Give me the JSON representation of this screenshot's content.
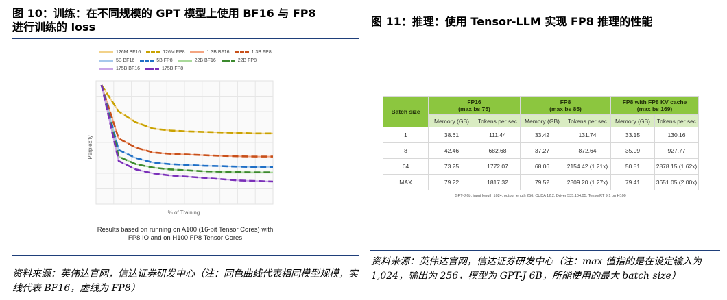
{
  "fig10": {
    "title_line1": "图 10：训练：在不同规模的 GPT 模型上使用 BF16 与 FP8",
    "title_line2": "进行训练的 loss",
    "source": "资料来源：英伟达官网，信达证券研发中心（注：同色曲线代表相同模型规模，实线代表 BF16，虚线为 FP8）",
    "note": "Results based on running on A100 (16-bit Tensor Cores) with FP8 IO and on H100 FP8 Tensor Cores"
  },
  "fig11": {
    "title": "图 11：推理：使用 Tensor-LLM 实现 FP8 推理的性能",
    "source": "资料来源：英伟达官网，信达证券研发中心（注：max 值指的是在设定输入为 1,024，输出为 256，模型为 GPT-J 6B，所能使用的最大 batch size）",
    "footnote": "GPT-J 6b, input length 1024, output length 256, CUDA 12.2, Driver 535.104.05, TensorRT 9.1 on H100"
  },
  "chart_data": {
    "type": "line",
    "title": "",
    "xlabel": "% of Training",
    "ylabel": "Perplexity",
    "grid": true,
    "legend_position": "top",
    "series": [
      {
        "name": "126M BF16",
        "color": "#f2d28a",
        "style": "solid",
        "values": [
          1.0,
          0.62,
          0.49,
          0.42,
          0.4,
          0.39,
          0.385,
          0.38,
          0.375,
          0.37,
          0.37
        ]
      },
      {
        "name": "126M FP8",
        "color": "#c9a200",
        "style": "dashed",
        "values": [
          1.0,
          0.62,
          0.49,
          0.42,
          0.4,
          0.39,
          0.385,
          0.38,
          0.375,
          0.37,
          0.37
        ]
      },
      {
        "name": "1.3B BF16",
        "color": "#f4a582",
        "style": "solid",
        "values": [
          1.0,
          0.32,
          0.24,
          0.2,
          0.19,
          0.185,
          0.18,
          0.175,
          0.172,
          0.17,
          0.17
        ]
      },
      {
        "name": "1.3B FP8",
        "color": "#c8501a",
        "style": "dashed",
        "values": [
          1.0,
          0.32,
          0.24,
          0.2,
          0.19,
          0.185,
          0.18,
          0.175,
          0.172,
          0.17,
          0.17
        ]
      },
      {
        "name": "5B BF16",
        "color": "#a6c8ec",
        "style": "solid",
        "values": [
          1.0,
          0.22,
          0.16,
          0.13,
          0.12,
          0.115,
          0.11,
          0.108,
          0.105,
          0.103,
          0.103
        ]
      },
      {
        "name": "5B FP8",
        "color": "#1f6fc6",
        "style": "dashed",
        "values": [
          1.0,
          0.22,
          0.16,
          0.13,
          0.12,
          0.115,
          0.11,
          0.108,
          0.105,
          0.103,
          0.103
        ]
      },
      {
        "name": "22B BF16",
        "color": "#a9d99a",
        "style": "solid",
        "values": [
          1.0,
          0.17,
          0.12,
          0.1,
          0.09,
          0.085,
          0.08,
          0.078,
          0.076,
          0.075,
          0.075
        ]
      },
      {
        "name": "22B FP8",
        "color": "#3c8a2e",
        "style": "dashed",
        "values": [
          1.0,
          0.17,
          0.12,
          0.1,
          0.09,
          0.085,
          0.08,
          0.078,
          0.076,
          0.075,
          0.075
        ]
      },
      {
        "name": "175B BF16",
        "color": "#c9a6e8",
        "style": "solid",
        "values": [
          1.0,
          0.14,
          0.09,
          0.07,
          0.06,
          0.055,
          0.05,
          0.045,
          0.04,
          0.038,
          0.036
        ]
      },
      {
        "name": "175B FP8",
        "color": "#7a2fb8",
        "style": "dashed",
        "values": [
          1.0,
          0.14,
          0.09,
          0.07,
          0.06,
          0.055,
          0.05,
          0.045,
          0.04,
          0.038,
          0.036
        ]
      }
    ]
  },
  "table": {
    "col_batch": "Batch size",
    "groups": [
      {
        "name": "FP16",
        "sub": "(max bs 75)"
      },
      {
        "name": "FP8",
        "sub": "(max bs 85)"
      },
      {
        "name": "FP8 with FP8 KV cache",
        "sub": "(max bs 169)"
      }
    ],
    "subheaders": [
      "Memory (GB)",
      "Tokens per sec",
      "Memory (GB)",
      "Tokens per sec",
      "Memory (GB)",
      "Tokens per sec"
    ],
    "rows": [
      [
        "1",
        "38.61",
        "111.44",
        "33.42",
        "131.74",
        "33.15",
        "130.16"
      ],
      [
        "8",
        "42.46",
        "682.68",
        "37.27",
        "872.64",
        "35.09",
        "927.77"
      ],
      [
        "64",
        "73.25",
        "1772.07",
        "68.06",
        "2154.42 (1.21x)",
        "50.51",
        "2878.15 (1.62x)"
      ],
      [
        "MAX",
        "79.22",
        "1817.32",
        "79.52",
        "2309.20 (1.27x)",
        "79.41",
        "3651.05 (2.00x)"
      ]
    ]
  }
}
